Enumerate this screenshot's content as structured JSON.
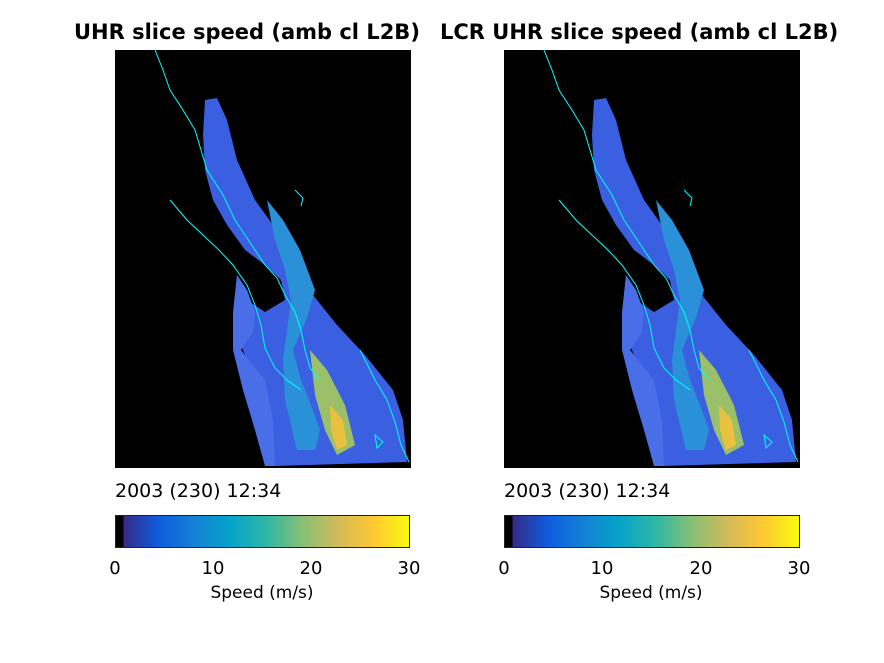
{
  "panels": [
    {
      "title": "UHR slice speed (amb cl L2B)",
      "timestamp": "2003 (230) 12:34",
      "colorbar": {
        "ticks": [
          "0",
          "10",
          "20",
          "30"
        ],
        "label": "Speed (m/s)"
      }
    },
    {
      "title": "LCR UHR slice speed (amb cl L2B)",
      "timestamp": "2003 (230) 12:34",
      "colorbar": {
        "ticks": [
          "0",
          "10",
          "20",
          "30"
        ],
        "label": "Speed (m/s)"
      }
    }
  ],
  "colors": {
    "background": "#000000",
    "coastline": "#00ffff",
    "colormap": [
      "#000000",
      "#352a87",
      "#0f5cdd",
      "#1481d6",
      "#06a4ca",
      "#2eb7a4",
      "#87bf77",
      "#d1bb59",
      "#fec832",
      "#f9fb0e"
    ]
  },
  "chart_data": [
    {
      "type": "heatmap",
      "title": "UHR slice speed (amb cl L2B)",
      "annotation": "2003 (230) 12:34",
      "colorbar_label": "Speed (m/s)",
      "colorbar_range": [
        0,
        30
      ],
      "colorbar_ticks": [
        0,
        10,
        20,
        30
      ],
      "typical_value": 8,
      "max_value": 25
    },
    {
      "type": "heatmap",
      "title": "LCR UHR slice speed (amb cl L2B)",
      "annotation": "2003 (230) 12:34",
      "colorbar_label": "Speed (m/s)",
      "colorbar_range": [
        0,
        30
      ],
      "colorbar_ticks": [
        0,
        10,
        20,
        30
      ],
      "typical_value": 8,
      "max_value": 25
    }
  ]
}
